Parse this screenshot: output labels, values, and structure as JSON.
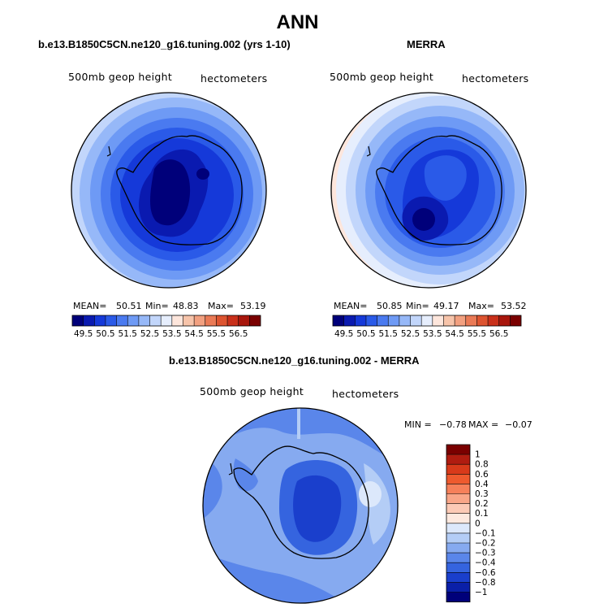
{
  "title": "ANN",
  "panels": [
    {
      "title": "b.e13.B1850C5CN.ne120_g16.tuning.002 (yrs 1-10)",
      "variable": "500mb geop height",
      "units": "hectometers",
      "stats": {
        "mean_label": "MEAN=",
        "mean": "50.51",
        "min_label": "Min=",
        "min": "48.83",
        "max_label": "Max=",
        "max": "53.19"
      }
    },
    {
      "title": "MERRA",
      "variable": "500mb geop height",
      "units": "hectometers",
      "stats": {
        "mean_label": "MEAN=",
        "mean": "50.85",
        "min_label": "Min=",
        "min": "49.17",
        "max_label": "Max=",
        "max": "53.52"
      }
    },
    {
      "title": "b.e13.B1850C5CN.ne120_g16.tuning.002 - MERRA",
      "variable": "500mb geop height",
      "units": "hectometers",
      "stats": {
        "min_label": "MIN =",
        "min": "−0.78",
        "max_label": "MAX =",
        "max": "−0.07"
      }
    }
  ],
  "colorbar_main": {
    "labels": [
      "49.5",
      "50.5",
      "51.5",
      "52.5",
      "53.5",
      "54.5",
      "55.5",
      "56.5"
    ],
    "colors": [
      "#00007a",
      "#0a1ab0",
      "#1539d9",
      "#2a5ae8",
      "#4a7af0",
      "#6e9af5",
      "#96b8f8",
      "#c2d6fb",
      "#e6eefd",
      "#fde6dc",
      "#f7c4aa",
      "#f2a080",
      "#ea7a56",
      "#dd5430",
      "#c9301a",
      "#a8160c",
      "#7a0000"
    ]
  },
  "colorbar_diff": {
    "labels": [
      "1",
      "0.8",
      "0.6",
      "0.4",
      "0.3",
      "0.2",
      "0.1",
      "0",
      "−0.1",
      "−0.2",
      "−0.3",
      "−0.4",
      "−0.6",
      "−0.8",
      "−1"
    ],
    "colors": [
      "#7a0000",
      "#b01c10",
      "#d83a1a",
      "#ee5a2e",
      "#f6805a",
      "#f9a688",
      "#fccab6",
      "#fde9df",
      "#dce8fb",
      "#b4cdf6",
      "#86aaf0",
      "#5a86ea",
      "#3564df",
      "#1a3fcc",
      "#0a1fa8",
      "#00007a"
    ]
  }
}
